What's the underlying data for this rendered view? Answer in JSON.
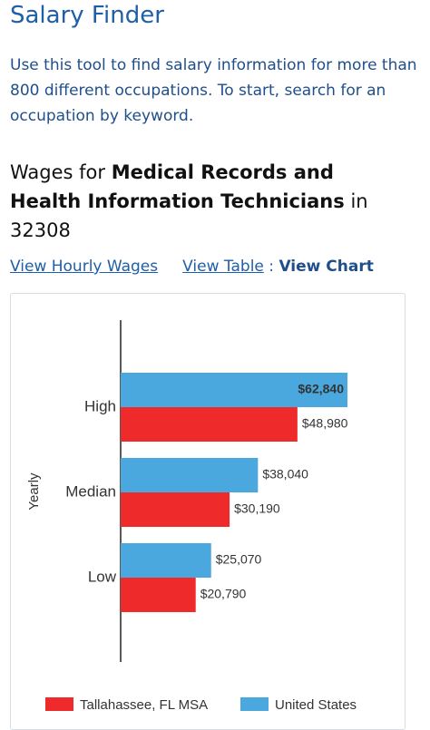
{
  "header": {
    "title": "Salary Finder",
    "intro": "Use this tool to find salary information for more than 800 different occupations. To start, search for an occupation by keyword.",
    "heading_prefix": "Wages for",
    "occupation": "Medical Records and Health Information Technicians",
    "heading_in": "in",
    "location": "32308"
  },
  "links": {
    "hourly": "View Hourly Wages",
    "table": "View Table",
    "separator": ":",
    "chart": "View Chart"
  },
  "chart_data": {
    "type": "bar",
    "orientation": "horizontal",
    "y_label": "Yearly",
    "categories": [
      "High",
      "Median",
      "Low"
    ],
    "series": [
      {
        "name": "United States",
        "color": "#4aa8df",
        "values": [
          62840,
          38040,
          25070
        ],
        "value_labels": [
          "$62,840",
          "$38,040",
          "$25,070"
        ]
      },
      {
        "name": "Tallahassee, FL MSA",
        "color": "#ee2a2a",
        "values": [
          48980,
          30190,
          20790
        ],
        "value_labels": [
          "$48,980",
          "$30,190",
          "$20,790"
        ]
      }
    ],
    "legend_order": [
      1,
      0
    ]
  }
}
